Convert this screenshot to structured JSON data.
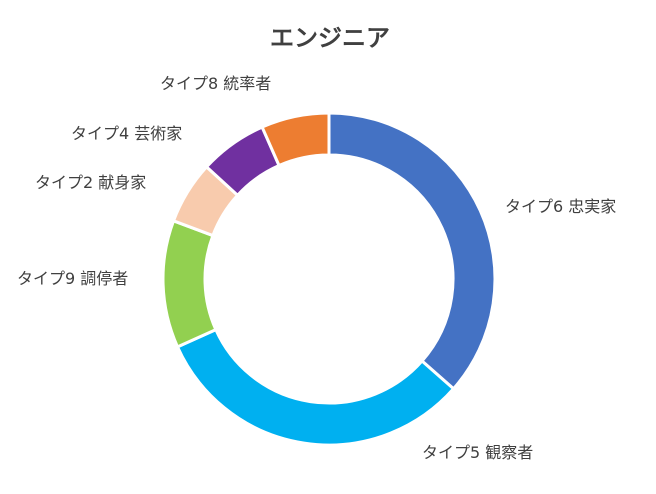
{
  "chart_data": {
    "type": "pie",
    "variant": "donut",
    "title": "エンジニア",
    "legend": "none",
    "slices": [
      {
        "label": "タイプ6 忠実家",
        "value": 36.5,
        "color": "#4472C4"
      },
      {
        "label": "タイプ5 観察者",
        "value": 31.8,
        "color": "#00B0F0"
      },
      {
        "label": "タイプ9 調停者",
        "value": 12.4,
        "color": "#92D050"
      },
      {
        "label": "タイプ2 献身家",
        "value": 6.1,
        "color": "#F8CBAD"
      },
      {
        "label": "タイプ4 芸術家",
        "value": 6.6,
        "color": "#7030A0"
      },
      {
        "label": "タイプ8 統率者",
        "value": 6.6,
        "color": "#ED7D31"
      }
    ]
  }
}
